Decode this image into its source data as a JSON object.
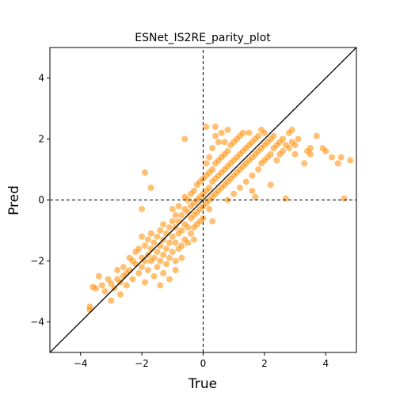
{
  "chart_data": {
    "type": "scatter",
    "title": "ESNet_IS2RE_parity_plot",
    "xlabel": "True",
    "ylabel": "Pred",
    "xlim": [
      -5,
      5
    ],
    "ylim": [
      -5,
      5
    ],
    "xticks": [
      -4,
      -2,
      0,
      2,
      4
    ],
    "yticks": [
      -4,
      -2,
      0,
      2,
      4
    ],
    "tick_labels_x": [
      "−4",
      "−2",
      "0",
      "2",
      "4"
    ],
    "tick_labels_y": [
      "−4",
      "−2",
      "0",
      "2",
      "4"
    ],
    "grid": false,
    "legend": "none",
    "point_color": "#ff8c00",
    "point_alpha": 0.55,
    "reference_lines": {
      "identity": {
        "from": [
          -5,
          -5
        ],
        "to": [
          5,
          5
        ],
        "style": "solid",
        "color": "#000000"
      },
      "horizontal_zero": {
        "y": 0,
        "style": "dashed",
        "color": "#000000"
      },
      "vertical_zero": {
        "x": 0,
        "style": "dashed",
        "color": "#000000"
      }
    },
    "points": [
      [
        -3.7,
        -3.5
      ],
      [
        -3.7,
        -3.6
      ],
      [
        -3.5,
        -2.9
      ],
      [
        -3.6,
        -2.85
      ],
      [
        -3.4,
        -2.5
      ],
      [
        -3.3,
        -2.8
      ],
      [
        -3.2,
        -3.0
      ],
      [
        -3.1,
        -2.6
      ],
      [
        -3.0,
        -2.75
      ],
      [
        -3.0,
        -3.3
      ],
      [
        -2.9,
        -2.9
      ],
      [
        -2.8,
        -2.3
      ],
      [
        -2.8,
        -2.6
      ],
      [
        -2.7,
        -2.7
      ],
      [
        -2.7,
        -3.1
      ],
      [
        -2.6,
        -2.5
      ],
      [
        -2.6,
        -2.2
      ],
      [
        -2.5,
        -2.4
      ],
      [
        -2.5,
        -2.8
      ],
      [
        -2.4,
        -1.9
      ],
      [
        -2.4,
        -2.3
      ],
      [
        -2.3,
        -2.0
      ],
      [
        -2.3,
        -2.6
      ],
      [
        -2.2,
        -1.7
      ],
      [
        -2.2,
        -2.1
      ],
      [
        -2.1,
        -2.4
      ],
      [
        -2.1,
        -1.6
      ],
      [
        -2.0,
        -1.9
      ],
      [
        -2.0,
        -2.2
      ],
      [
        -2.0,
        -1.2
      ],
      [
        -1.9,
        -1.5
      ],
      [
        -1.9,
        -2.0
      ],
      [
        -1.9,
        -2.7
      ],
      [
        -1.8,
        -1.8
      ],
      [
        -1.8,
        -1.3
      ],
      [
        -1.8,
        -2.3
      ],
      [
        -1.7,
        -1.6
      ],
      [
        -1.7,
        -1.1
      ],
      [
        -1.7,
        -2.0
      ],
      [
        -1.6,
        -1.4
      ],
      [
        -1.6,
        -1.9
      ],
      [
        -1.6,
        -2.5
      ],
      [
        -1.5,
        -1.2
      ],
      [
        -1.5,
        -1.7
      ],
      [
        -1.5,
        -2.2
      ],
      [
        -1.4,
        -1.0
      ],
      [
        -1.4,
        -1.5
      ],
      [
        -1.4,
        -2.0
      ],
      [
        -1.3,
        -1.3
      ],
      [
        -1.3,
        -1.8
      ],
      [
        -1.3,
        -0.8
      ],
      [
        -1.3,
        -2.4
      ],
      [
        -1.2,
        -1.1
      ],
      [
        -1.2,
        -1.6
      ],
      [
        -1.2,
        -2.1
      ],
      [
        -1.1,
        -0.9
      ],
      [
        -1.1,
        -1.4
      ],
      [
        -1.1,
        -1.9
      ],
      [
        -1.1,
        -2.6
      ],
      [
        -1.0,
        -0.7
      ],
      [
        -1.0,
        -1.2
      ],
      [
        -1.0,
        -1.7
      ],
      [
        -1.0,
        -0.3
      ],
      [
        -0.9,
        -0.9
      ],
      [
        -0.9,
        -1.4
      ],
      [
        -0.9,
        -2.0
      ],
      [
        -0.9,
        -0.5
      ],
      [
        -0.8,
        -0.7
      ],
      [
        -0.8,
        -1.1
      ],
      [
        -0.8,
        -1.6
      ],
      [
        -0.8,
        -0.2
      ],
      [
        -0.7,
        -0.5
      ],
      [
        -0.7,
        -1.0
      ],
      [
        -0.7,
        -1.5
      ],
      [
        -0.7,
        -1.9
      ],
      [
        -0.6,
        -0.3
      ],
      [
        -0.6,
        -0.8
      ],
      [
        -0.6,
        -1.3
      ],
      [
        -0.6,
        0.1
      ],
      [
        -0.5,
        -0.4
      ],
      [
        -0.5,
        -0.9
      ],
      [
        -0.5,
        -1.4
      ],
      [
        -0.5,
        0.0
      ],
      [
        -0.4,
        -0.2
      ],
      [
        -0.4,
        -0.6
      ],
      [
        -0.4,
        -1.1
      ],
      [
        -0.4,
        0.2
      ],
      [
        -0.3,
        -0.1
      ],
      [
        -0.3,
        -0.5
      ],
      [
        -0.3,
        -0.9
      ],
      [
        -0.3,
        0.3
      ],
      [
        -0.2,
        0.0
      ],
      [
        -0.2,
        -0.4
      ],
      [
        -0.2,
        -0.8
      ],
      [
        -0.2,
        0.5
      ],
      [
        -0.1,
        0.1
      ],
      [
        -0.1,
        -0.3
      ],
      [
        -0.1,
        -0.7
      ],
      [
        -0.1,
        0.6
      ],
      [
        0.0,
        0.2
      ],
      [
        0.0,
        -0.2
      ],
      [
        0.0,
        0.7
      ],
      [
        0.0,
        -0.6
      ],
      [
        0.1,
        0.3
      ],
      [
        0.1,
        0.8
      ],
      [
        0.1,
        -0.1
      ],
      [
        0.1,
        1.2
      ],
      [
        0.2,
        0.4
      ],
      [
        0.2,
        0.9
      ],
      [
        0.2,
        0.0
      ],
      [
        0.2,
        1.4
      ],
      [
        0.3,
        0.6
      ],
      [
        0.3,
        1.0
      ],
      [
        0.3,
        0.1
      ],
      [
        0.3,
        1.7
      ],
      [
        0.4,
        0.7
      ],
      [
        0.4,
        1.2
      ],
      [
        0.4,
        0.2
      ],
      [
        0.4,
        2.1
      ],
      [
        0.5,
        0.8
      ],
      [
        0.5,
        1.3
      ],
      [
        0.5,
        0.3
      ],
      [
        0.5,
        1.9
      ],
      [
        0.6,
        0.9
      ],
      [
        0.6,
        1.4
      ],
      [
        0.6,
        0.4
      ],
      [
        0.6,
        2.2
      ],
      [
        0.7,
        1.0
      ],
      [
        0.7,
        1.5
      ],
      [
        0.7,
        0.5
      ],
      [
        0.7,
        1.9
      ],
      [
        0.8,
        1.1
      ],
      [
        0.8,
        1.6
      ],
      [
        0.8,
        0.6
      ],
      [
        0.8,
        2.3
      ],
      [
        0.9,
        1.2
      ],
      [
        0.9,
        0.7
      ],
      [
        0.9,
        1.8
      ],
      [
        1.0,
        1.3
      ],
      [
        1.0,
        0.8
      ],
      [
        1.0,
        1.9
      ],
      [
        1.0,
        0.2
      ],
      [
        1.1,
        1.4
      ],
      [
        1.1,
        0.9
      ],
      [
        1.1,
        2.0
      ],
      [
        1.2,
        1.5
      ],
      [
        1.2,
        1.0
      ],
      [
        1.2,
        2.1
      ],
      [
        1.2,
        0.4
      ],
      [
        1.3,
        1.6
      ],
      [
        1.3,
        1.1
      ],
      [
        1.3,
        2.2
      ],
      [
        1.4,
        1.7
      ],
      [
        1.4,
        1.2
      ],
      [
        1.4,
        0.6
      ],
      [
        1.5,
        1.8
      ],
      [
        1.5,
        1.3
      ],
      [
        1.5,
        2.2
      ],
      [
        1.6,
        1.9
      ],
      [
        1.6,
        1.4
      ],
      [
        1.6,
        0.8
      ],
      [
        1.7,
        2.0
      ],
      [
        1.7,
        1.5
      ],
      [
        1.8,
        1.6
      ],
      [
        1.8,
        2.1
      ],
      [
        1.8,
        1.0
      ],
      [
        1.9,
        1.7
      ],
      [
        1.9,
        1.2
      ],
      [
        2.0,
        1.8
      ],
      [
        2.0,
        1.3
      ],
      [
        2.0,
        2.2
      ],
      [
        2.1,
        1.9
      ],
      [
        2.1,
        1.4
      ],
      [
        2.2,
        2.0
      ],
      [
        2.2,
        1.5
      ],
      [
        2.3,
        1.7
      ],
      [
        2.3,
        2.1
      ],
      [
        2.4,
        1.8
      ],
      [
        2.4,
        1.3
      ],
      [
        2.5,
        1.9
      ],
      [
        2.5,
        1.5
      ],
      [
        2.6,
        2.0
      ],
      [
        2.6,
        1.6
      ],
      [
        2.7,
        1.8
      ],
      [
        2.8,
        2.2
      ],
      [
        2.8,
        1.7
      ],
      [
        2.9,
        1.9
      ],
      [
        2.9,
        2.3
      ],
      [
        3.0,
        1.8
      ],
      [
        3.0,
        1.5
      ],
      [
        3.4,
        1.6
      ],
      [
        3.5,
        1.5
      ],
      [
        3.5,
        1.7
      ],
      [
        3.7,
        2.1
      ],
      [
        3.9,
        1.7
      ],
      [
        4.0,
        1.6
      ],
      [
        4.2,
        1.4
      ],
      [
        4.4,
        1.2
      ],
      [
        4.5,
        1.4
      ],
      [
        4.8,
        1.3
      ],
      [
        4.6,
        0.05
      ],
      [
        2.7,
        0.05
      ],
      [
        1.7,
        0.1
      ],
      [
        -0.6,
        2.0
      ],
      [
        -1.9,
        0.9
      ],
      [
        -1.7,
        0.4
      ],
      [
        -2.0,
        -0.3
      ],
      [
        0.1,
        2.4
      ],
      [
        0.4,
        2.4
      ],
      [
        0.8,
        0.0
      ],
      [
        1.6,
        0.3
      ],
      [
        2.2,
        0.5
      ],
      [
        -0.3,
        -1.3
      ],
      [
        -0.9,
        -2.3
      ],
      [
        -1.4,
        -2.8
      ],
      [
        0.3,
        -0.7
      ],
      [
        0.2,
        -0.3
      ],
      [
        1.9,
        2.3
      ],
      [
        3.1,
        2.0
      ],
      [
        3.3,
        1.2
      ]
    ]
  }
}
